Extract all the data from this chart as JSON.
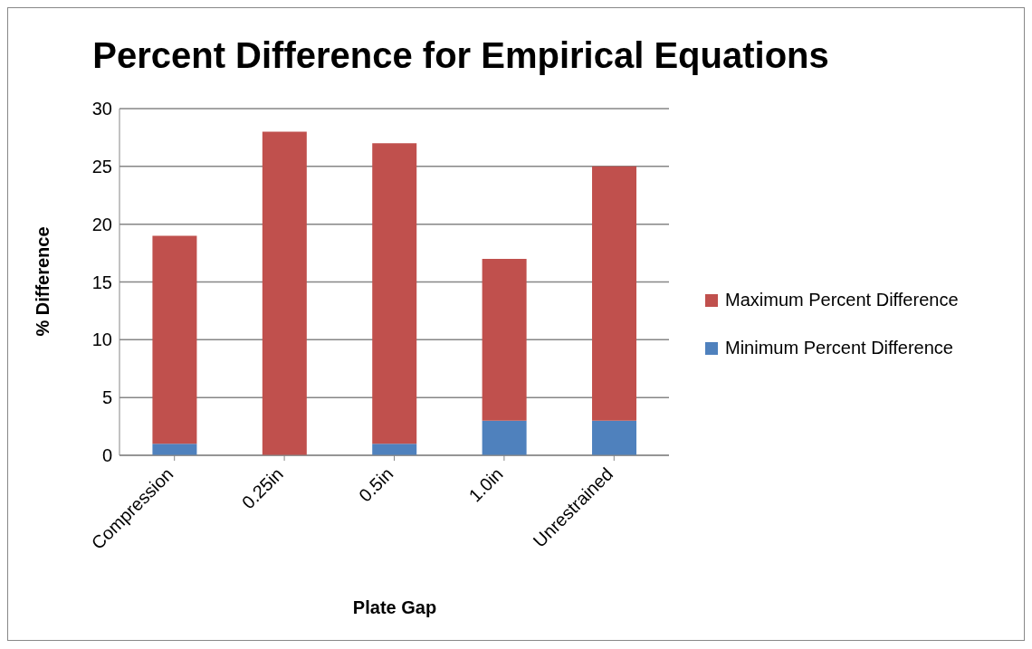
{
  "chart_data": {
    "type": "bar",
    "title": "Percent Difference for Empirical Equations",
    "xlabel": "Plate Gap",
    "ylabel": "% Difference",
    "categories": [
      "Compression",
      "0.25in",
      "0.5in",
      "1.0in",
      "Unrestrained"
    ],
    "series": [
      {
        "name": "Minimum Percent Difference",
        "color": "#4f81bd",
        "values": [
          1,
          0,
          1,
          3,
          3
        ]
      },
      {
        "name": "Maximum Percent Difference",
        "color": "#c0504d",
        "values": [
          18,
          28,
          26,
          14,
          22
        ]
      }
    ],
    "stacked": true,
    "ylim": [
      0,
      30
    ],
    "yticks": [
      0,
      5,
      10,
      15,
      20,
      25,
      30
    ],
    "grid": "y",
    "legend": "right"
  }
}
